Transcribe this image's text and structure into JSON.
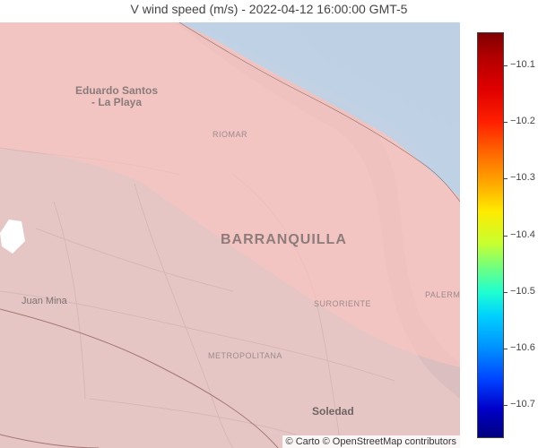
{
  "title": "V wind speed (m/s) - 2022-04-12 16:00:00 GMT-5",
  "map": {
    "labels": {
      "eduardo_santos": "Eduardo Santos\n- La Playa",
      "riomar": "RIOMAR",
      "barranquilla": "BARRANQUILLA",
      "juan_mina": "Juan Mina",
      "suroriente": "SURORIENTE",
      "palermo": "PALERMO",
      "metropolitana": "METROPOLITANA",
      "soledad": "Soledad"
    },
    "attribution": "© Carto © OpenStreetMap contributors"
  },
  "colorbar": {
    "ticks": [
      "−10.1",
      "−10.2",
      "−10.3",
      "−10.4",
      "−10.5",
      "−10.6",
      "−10.7"
    ],
    "colorscale": [
      "#7f0000",
      "#e00000",
      "#ff6a00",
      "#ffea00",
      "#70ff80",
      "#00d0ff",
      "#0040ff",
      "#00007f"
    ]
  }
}
